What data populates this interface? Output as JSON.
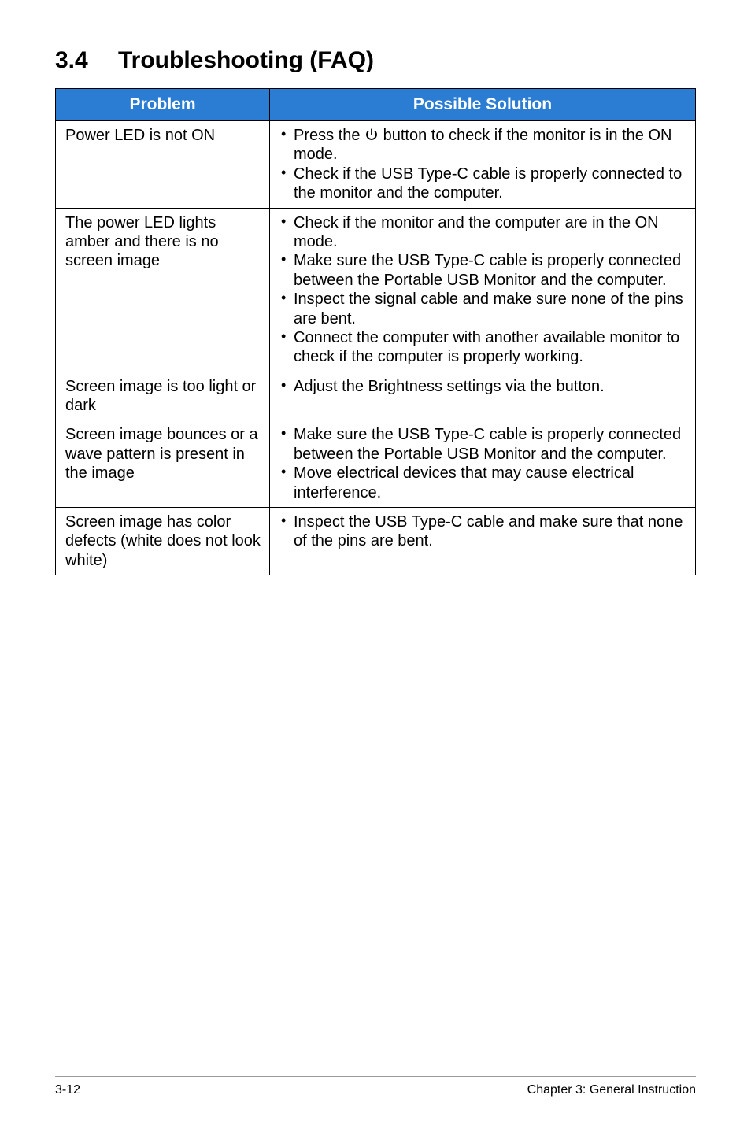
{
  "heading": {
    "number": "3.4",
    "title": "Troubleshooting (FAQ)"
  },
  "table": {
    "headers": {
      "problem": "Problem",
      "solution": "Possible Solution"
    },
    "header_bg": "#2b7cd3",
    "header_fg": "#ffffff",
    "border_color": "#000000",
    "rows": [
      {
        "problem": "Power LED is not ON",
        "solutions": [
          {
            "pre": "Press the ",
            "icon": "power",
            "post": " button to check if the monitor is in the ON mode."
          },
          {
            "text": "Check if the USB Type-C cable is properly connected to the monitor and the computer."
          }
        ]
      },
      {
        "problem": "The power LED lights amber and there is no screen image",
        "solutions": [
          {
            "text": "Check if the monitor and the computer are in the ON mode."
          },
          {
            "text": "Make sure the USB Type-C cable is properly connected between the Portable USB Monitor and the computer."
          },
          {
            "text": "Inspect the signal cable and make sure none of the pins are bent."
          },
          {
            "text": "Connect the computer with another available monitor to check if the computer is properly working."
          }
        ]
      },
      {
        "problem": "Screen image is too light or dark",
        "solutions": [
          {
            "text": "Adjust the Brightness settings via the button."
          }
        ]
      },
      {
        "problem": "Screen image bounces or a wave pattern is present in the image",
        "solutions": [
          {
            "text": "Make sure the USB Type-C cable is properly connected between the Portable USB Monitor and the computer."
          },
          {
            "text": "Move electrical devices that may cause electrical interference."
          }
        ]
      },
      {
        "problem": "Screen image has color defects (white does not look white)",
        "solutions": [
          {
            "text": "Inspect the USB Type-C cable and make sure that none of the pins are bent."
          }
        ]
      }
    ]
  },
  "footer": {
    "page": "3-12",
    "chapter": "Chapter 3: General Instruction",
    "rule_color": "#9a9a9a"
  }
}
